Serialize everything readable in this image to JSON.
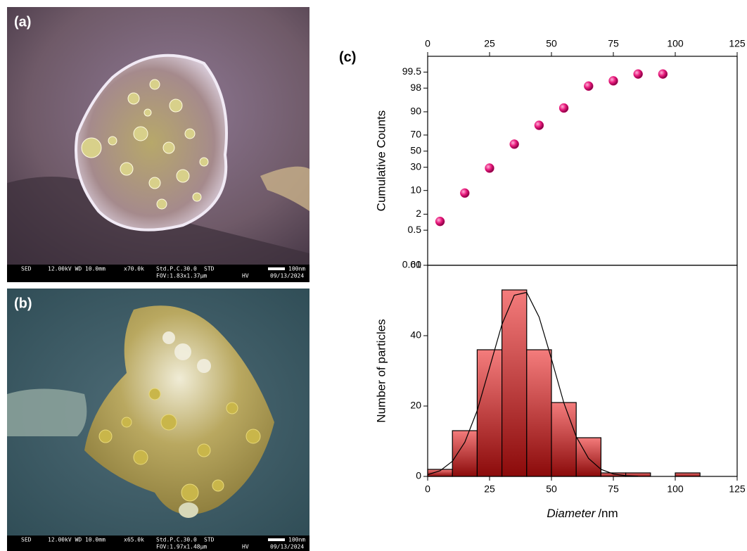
{
  "panels": [
    {
      "label": "(a)",
      "info": {
        "detector": "SED",
        "settings": "12.00kV WD 10.0mm",
        "mag": "x70.0k",
        "pc": "Std.P.C.30.0",
        "mode": "STD",
        "scale": "100nm",
        "fov": "FOV:1.83x1.37µm",
        "vac": "HV",
        "date": "09/13/2024"
      }
    },
    {
      "label": "(b)",
      "info": {
        "detector": "SED",
        "settings": "12.00kV WD 10.0mm",
        "mag": "x65.0k",
        "pc": "Std.P.C.30.0",
        "mode": "STD",
        "scale": "100nm",
        "fov": "FOV:1.97x1.48µm",
        "vac": "HV",
        "date": "09/13/2024"
      }
    }
  ],
  "chart_label": "(c)",
  "chart_data": [
    {
      "type": "scatter",
      "ylabel": "Cumulative Counts",
      "color": "#e8177a",
      "x": [
        5,
        15,
        25,
        35,
        45,
        55,
        65,
        75,
        85,
        95
      ],
      "values": [
        1.1,
        8.6,
        29,
        59,
        80,
        92,
        98.3,
        98.9,
        99.4,
        99.4
      ],
      "xlim": [
        0,
        125
      ],
      "xticks": [
        0,
        25,
        50,
        75,
        100,
        125
      ],
      "yscale": "probability",
      "ylim": [
        0.01,
        99.9
      ],
      "yticks": [
        0.01,
        0.5,
        2,
        10,
        30,
        50,
        70,
        90,
        98,
        99.5
      ]
    },
    {
      "type": "histogram",
      "xlabel": "Diameter",
      "xlabel_unit": "/nm",
      "ylabel": "Number of particles",
      "color": "#f47c7c",
      "bins": [
        0,
        10,
        20,
        30,
        40,
        50,
        60,
        70,
        80,
        90,
        100,
        110
      ],
      "values": [
        2,
        13,
        36,
        53,
        36,
        21,
        11,
        1,
        1,
        0,
        1
      ],
      "fit": {
        "x": [
          0,
          5,
          10,
          15,
          20,
          25,
          30,
          35,
          40,
          45,
          50,
          55,
          60,
          65,
          70,
          75,
          80,
          85
        ],
        "values": [
          0.5,
          1.6,
          4.3,
          9.7,
          18.7,
          30.9,
          43.2,
          51.5,
          52.3,
          45.3,
          33.4,
          20.9,
          11.3,
          5.1,
          2.0,
          0.7,
          0.2,
          0.05
        ]
      },
      "xlim": [
        0,
        125
      ],
      "xticks": [
        0,
        25,
        50,
        75,
        100,
        125
      ],
      "ylim": [
        0,
        60
      ],
      "yticks": [
        0,
        20,
        40,
        60
      ]
    }
  ]
}
